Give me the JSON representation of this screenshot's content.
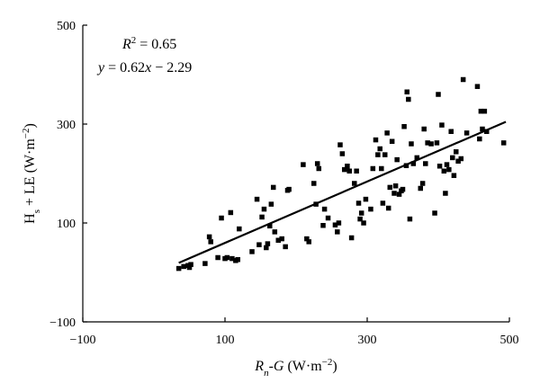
{
  "chart_data": {
    "type": "scatter",
    "xlim": [
      -100,
      500
    ],
    "ylim": [
      -100,
      500
    ],
    "x_ticks": [
      -100,
      100,
      300,
      500
    ],
    "y_ticks": [
      -100,
      100,
      300,
      500
    ],
    "x_tick_labels": [
      "−100",
      "100",
      "300",
      "500"
    ],
    "y_tick_labels": [
      "−100",
      "100",
      "300",
      "500"
    ],
    "xlabel": {
      "pre": "",
      "R": "R",
      "sub": "n",
      "mid": "-",
      "G": "G",
      " units": "",
      "units": " (W·m",
      "sup": "−2",
      "close": ")"
    },
    "ylabel": {
      "H": "H",
      "sub": "s",
      "rest": " + LE (W·m",
      "sup": "−2",
      "close": ")"
    },
    "annotations": {
      "r2_prefix": "R",
      "r2_sup": "2",
      "r2_value": " = 0.65",
      "eq_y": "y",
      "eq_mid": " = 0.62",
      "eq_x": "x",
      "eq_tail": " − 2.29"
    },
    "fit_line": {
      "slope": 0.62,
      "intercept": -2.29,
      "x_range": [
        35,
        495
      ]
    },
    "marker_color": "#000000",
    "line_color": "#000000",
    "grid": false,
    "points": [
      [
        35,
        8
      ],
      [
        42,
        12
      ],
      [
        48,
        14
      ],
      [
        50,
        10
      ],
      [
        52,
        16
      ],
      [
        72,
        18
      ],
      [
        78,
        72
      ],
      [
        80,
        62
      ],
      [
        90,
        30
      ],
      [
        95,
        110
      ],
      [
        100,
        28
      ],
      [
        103,
        30
      ],
      [
        108,
        121
      ],
      [
        110,
        28
      ],
      [
        115,
        24
      ],
      [
        118,
        26
      ],
      [
        120,
        88
      ],
      [
        138,
        42
      ],
      [
        145,
        148
      ],
      [
        148,
        56
      ],
      [
        152,
        112
      ],
      [
        155,
        128
      ],
      [
        158,
        50
      ],
      [
        160,
        58
      ],
      [
        163,
        94
      ],
      [
        165,
        138
      ],
      [
        168,
        172
      ],
      [
        170,
        82
      ],
      [
        175,
        65
      ],
      [
        180,
        68
      ],
      [
        185,
        52
      ],
      [
        188,
        166
      ],
      [
        190,
        168
      ],
      [
        210,
        218
      ],
      [
        215,
        68
      ],
      [
        218,
        62
      ],
      [
        225,
        180
      ],
      [
        228,
        138
      ],
      [
        230,
        220
      ],
      [
        232,
        210
      ],
      [
        238,
        95
      ],
      [
        240,
        128
      ],
      [
        245,
        110
      ],
      [
        255,
        96
      ],
      [
        258,
        82
      ],
      [
        260,
        100
      ],
      [
        262,
        258
      ],
      [
        265,
        240
      ],
      [
        268,
        208
      ],
      [
        272,
        215
      ],
      [
        275,
        205
      ],
      [
        278,
        70
      ],
      [
        282,
        180
      ],
      [
        285,
        205
      ],
      [
        288,
        140
      ],
      [
        290,
        108
      ],
      [
        292,
        120
      ],
      [
        295,
        100
      ],
      [
        298,
        148
      ],
      [
        305,
        128
      ],
      [
        308,
        210
      ],
      [
        312,
        268
      ],
      [
        315,
        238
      ],
      [
        318,
        250
      ],
      [
        320,
        210
      ],
      [
        322,
        140
      ],
      [
        325,
        238
      ],
      [
        328,
        282
      ],
      [
        330,
        130
      ],
      [
        332,
        172
      ],
      [
        335,
        265
      ],
      [
        338,
        160
      ],
      [
        340,
        175
      ],
      [
        342,
        228
      ],
      [
        345,
        158
      ],
      [
        348,
        165
      ],
      [
        350,
        168
      ],
      [
        352,
        295
      ],
      [
        355,
        216
      ],
      [
        356,
        365
      ],
      [
        358,
        350
      ],
      [
        360,
        108
      ],
      [
        362,
        260
      ],
      [
        365,
        220
      ],
      [
        370,
        232
      ],
      [
        375,
        170
      ],
      [
        378,
        180
      ],
      [
        380,
        290
      ],
      [
        382,
        220
      ],
      [
        385,
        262
      ],
      [
        390,
        260
      ],
      [
        395,
        120
      ],
      [
        398,
        262
      ],
      [
        400,
        360
      ],
      [
        402,
        215
      ],
      [
        405,
        298
      ],
      [
        408,
        205
      ],
      [
        410,
        160
      ],
      [
        412,
        218
      ],
      [
        415,
        208
      ],
      [
        418,
        285
      ],
      [
        420,
        232
      ],
      [
        422,
        196
      ],
      [
        425,
        244
      ],
      [
        428,
        225
      ],
      [
        432,
        230
      ],
      [
        435,
        390
      ],
      [
        440,
        282
      ],
      [
        455,
        376
      ],
      [
        458,
        270
      ],
      [
        460,
        326
      ],
      [
        462,
        290
      ],
      [
        465,
        326
      ],
      [
        468,
        285
      ],
      [
        492,
        262
      ]
    ]
  }
}
